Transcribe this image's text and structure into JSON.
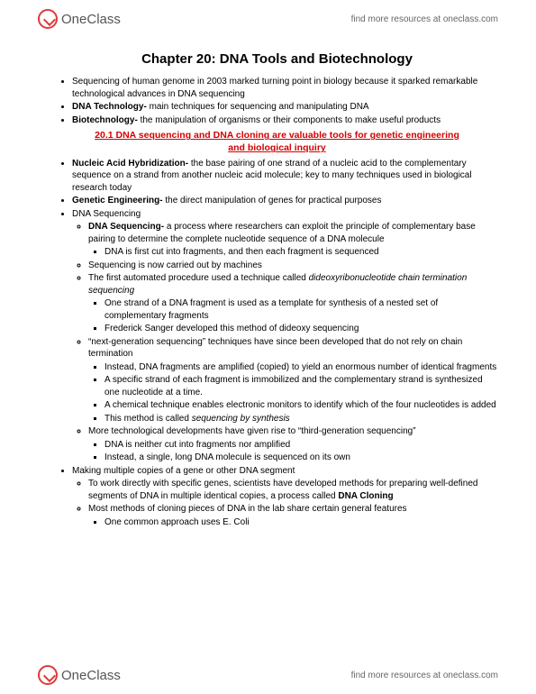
{
  "brand": {
    "one": "One",
    "class": "Class",
    "tagline": "find more resources at oneclass.com"
  },
  "title": "Chapter 20: DNA Tools and Biotechnology",
  "intro": [
    {
      "text": "Sequencing of human genome in 2003 marked turning point in biology because it sparked remarkable technological advances in DNA sequencing"
    },
    {
      "bold": "DNA Technology- ",
      "text": "main techniques for sequencing and manipulating DNA"
    },
    {
      "bold": "Biotechnology- ",
      "text": "the manipulation of organisms or their components to make useful products"
    }
  ],
  "section_head1": "20.1 DNA sequencing and DNA cloning are valuable tools for genetic engineering",
  "section_head2": "and biological inquiry",
  "items": {
    "nah": {
      "bold": "Nucleic Acid Hybridization- ",
      "text": "the base pairing of one strand of a nucleic acid to the complementary sequence on a strand from another nucleic acid molecule; key to many techniques used in biological research today"
    },
    "ge": {
      "bold": "Genetic Engineering- ",
      "text": "the direct manipulation of genes for practical purposes"
    },
    "dnaseq_label": "DNA Sequencing",
    "dnaseq": {
      "def": {
        "bold": "DNA Sequencing- ",
        "text": "a process where researchers can exploit the principle of complementary base pairing to determine the complete nucleotide sequence of a DNA molecule"
      },
      "def_sub": "DNA is first cut into fragments, and then each fragment is sequenced",
      "machines": "Sequencing is now carried out by machines",
      "dideoxy_pre": "The first automated procedure used a technique called ",
      "dideoxy_i": "dideoxyribonucleotide chain termination sequencing",
      "dideoxy_sub1": "One strand of a DNA fragment is used as a template for synthesis of a nested set of complementary fragments",
      "dideoxy_sub2": "Frederick Sanger developed this method of dideoxy sequencing",
      "nextgen": "“next-generation sequencing” techniques have since been developed that do not rely on chain termination",
      "ng1": "Instead, DNA fragments are amplified (copied) to yield an enormous number of identical fragments",
      "ng2": "A specific strand of each fragment is immobilized and the complementary strand is synthesized one nucleotide at a time.",
      "ng3": "A chemical technique enables electronic monitors to identify which of the four nucleotides is added",
      "ng4_pre": "This method is called ",
      "ng4_i": "sequencing by synthesis",
      "thirdgen": "More technological developments have given rise to “third-generation sequencing”",
      "tg1": "DNA is neither cut into fragments nor amplified",
      "tg2": "Instead, a single, long DNA molecule is sequenced on its own"
    },
    "copies_label": "Making multiple copies of a gene or other DNA segment",
    "copies": {
      "c1_pre": "To work directly with specific genes, scientists have developed methods for preparing well-defined segments of DNA in multiple identical copies, a process called ",
      "c1_b": "DNA Cloning",
      "c2": "Most methods of cloning pieces of DNA in the lab share certain general features",
      "c2_sub": "One common approach uses E. Coli"
    }
  }
}
